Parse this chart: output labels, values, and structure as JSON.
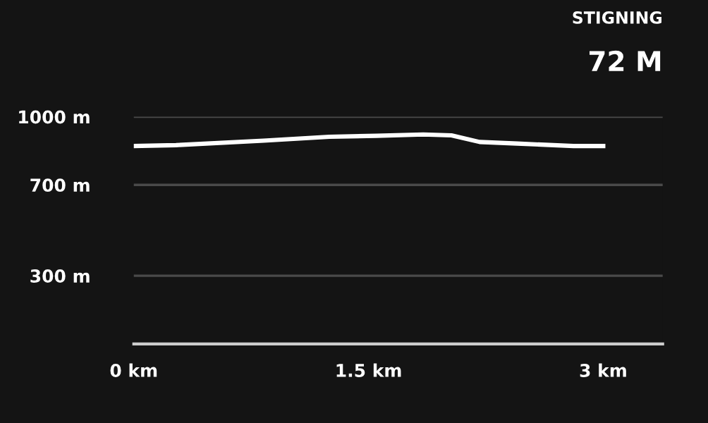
{
  "chart_data": {
    "type": "line",
    "title": "STIGNING",
    "subtitle": "72 M",
    "x": [
      0,
      0.27,
      0.83,
      1.25,
      1.55,
      1.85,
      2.03,
      2.21,
      2.45,
      2.81,
      3.0
    ],
    "series": [
      {
        "color": "#ffffff",
        "values": [
          871,
          875,
          895,
          912,
          916,
          922,
          918,
          889,
          882,
          871,
          871
        ]
      }
    ],
    "xlim": [
      0,
      3.38
    ],
    "xticks": [
      {
        "value": 0,
        "label": "0 km"
      },
      {
        "value": 1.5,
        "label": "1.5 km"
      },
      {
        "value": 3,
        "label": "3 km"
      }
    ],
    "ylim": [
      0,
      1000
    ],
    "yticks": [
      {
        "value": 300,
        "label": "300 m"
      },
      {
        "value": 700,
        "label": "700 m"
      },
      {
        "value": 1000,
        "label": "1000 m"
      }
    ],
    "grid": "y",
    "marker": "none",
    "line_style": "solid",
    "legend": false
  }
}
